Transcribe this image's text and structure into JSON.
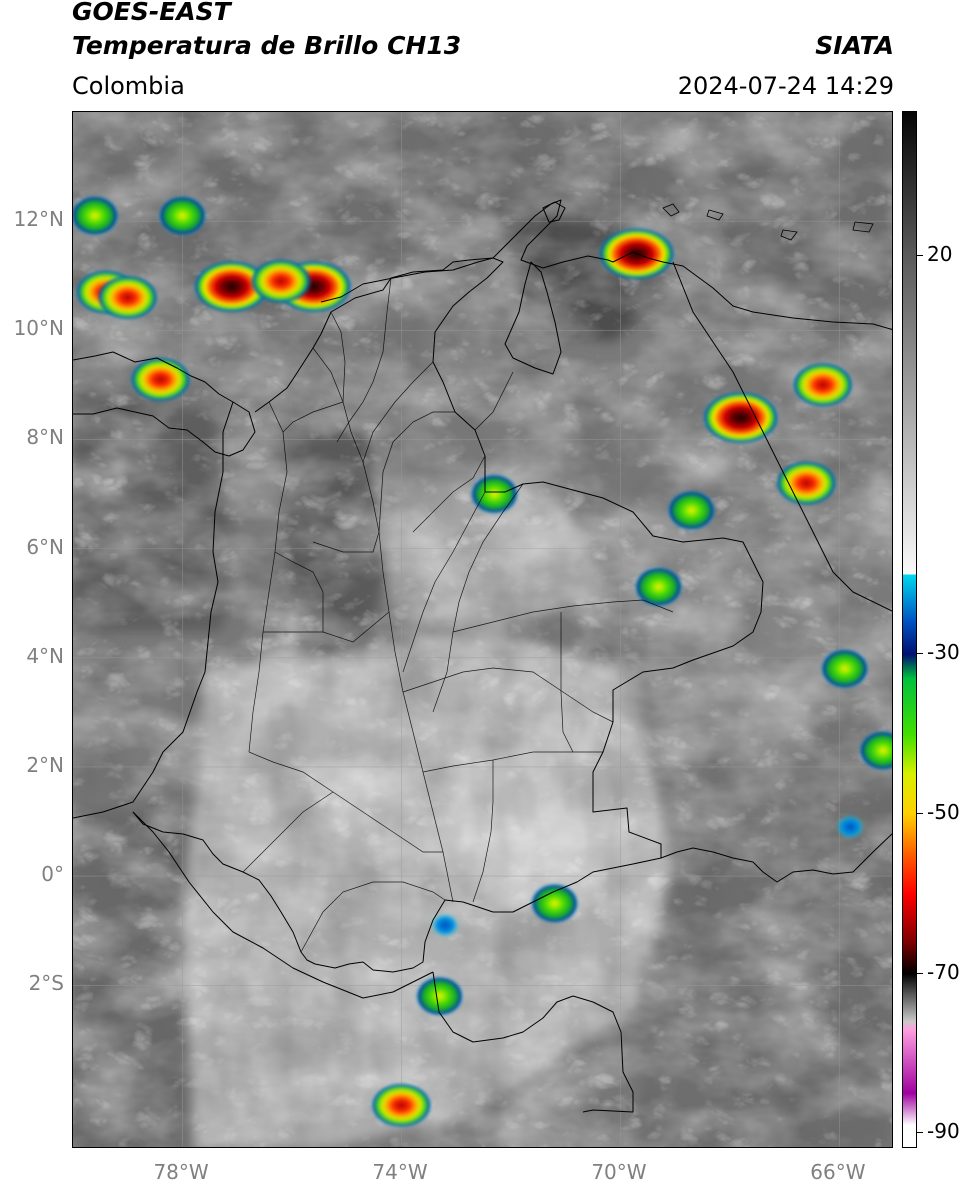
{
  "header": {
    "satellite": "GOES-EAST",
    "product": "Temperatura de Brillo CH13",
    "region": "Colombia",
    "source": "SIATA",
    "datetime": "2024-07-24 14:29"
  },
  "map": {
    "lon_range": [
      -80,
      -65
    ],
    "lat_range": [
      -5,
      14
    ],
    "lat_ticks": [
      {
        "value": 12,
        "label": "12°N"
      },
      {
        "value": 10,
        "label": "10°N"
      },
      {
        "value": 8,
        "label": "8°N"
      },
      {
        "value": 6,
        "label": "6°N"
      },
      {
        "value": 4,
        "label": "4°N"
      },
      {
        "value": 2,
        "label": "2°N"
      },
      {
        "value": 0,
        "label": "0°"
      },
      {
        "value": -2,
        "label": "2°S"
      }
    ],
    "lon_ticks": [
      {
        "value": -78,
        "label": "78°W"
      },
      {
        "value": -74,
        "label": "74°W"
      },
      {
        "value": -70,
        "label": "70°W"
      },
      {
        "value": -66,
        "label": "66°W"
      }
    ],
    "grid": true,
    "convective_cells": [
      {
        "lon": -75.6,
        "lat": 10.8,
        "intensity": "extreme"
      },
      {
        "lon": -77.1,
        "lat": 10.8,
        "intensity": "extreme"
      },
      {
        "lon": -76.2,
        "lat": 10.9,
        "intensity": "strong"
      },
      {
        "lon": -79.4,
        "lat": 10.7,
        "intensity": "strong"
      },
      {
        "lon": -79.0,
        "lat": 10.6,
        "intensity": "strong"
      },
      {
        "lon": -78.4,
        "lat": 9.1,
        "intensity": "strong"
      },
      {
        "lon": -69.7,
        "lat": 11.4,
        "intensity": "extreme"
      },
      {
        "lon": -67.8,
        "lat": 8.4,
        "intensity": "extreme"
      },
      {
        "lon": -66.3,
        "lat": 9.0,
        "intensity": "strong"
      },
      {
        "lon": -66.6,
        "lat": 7.2,
        "intensity": "strong"
      },
      {
        "lon": -74.0,
        "lat": -4.2,
        "intensity": "strong"
      },
      {
        "lon": -71.2,
        "lat": -0.5,
        "intensity": "moderate"
      },
      {
        "lon": -73.3,
        "lat": -2.2,
        "intensity": "moderate"
      },
      {
        "lon": -65.9,
        "lat": 3.8,
        "intensity": "moderate"
      },
      {
        "lon": -69.3,
        "lat": 5.3,
        "intensity": "moderate"
      },
      {
        "lon": -78.0,
        "lat": 12.1,
        "intensity": "moderate"
      },
      {
        "lon": -79.6,
        "lat": 12.1,
        "intensity": "moderate"
      },
      {
        "lon": -72.3,
        "lat": 7.0,
        "intensity": "moderate"
      },
      {
        "lon": -68.7,
        "lat": 6.7,
        "intensity": "moderate"
      },
      {
        "lon": -73.2,
        "lat": -0.9,
        "intensity": "weak"
      },
      {
        "lon": -65.2,
        "lat": 2.3,
        "intensity": "moderate"
      },
      {
        "lon": -65.8,
        "lat": 0.9,
        "intensity": "weak"
      }
    ]
  },
  "colorbar": {
    "vmin": -92,
    "vmax": 38,
    "ticks": [
      {
        "value": 20,
        "label": "20"
      },
      {
        "value": -30,
        "label": "-30"
      },
      {
        "value": -50,
        "label": "-50"
      },
      {
        "value": -70,
        "label": "-70"
      },
      {
        "value": -90,
        "label": "-90"
      }
    ],
    "stops": [
      {
        "value": 38,
        "color": "#050505"
      },
      {
        "value": 20,
        "color": "#5a5a5a"
      },
      {
        "value": -20,
        "color": "#fafafa"
      },
      {
        "value": -20.01,
        "color": "#00d8f0"
      },
      {
        "value": -26,
        "color": "#0050c0"
      },
      {
        "value": -30,
        "color": "#001070"
      },
      {
        "value": -33,
        "color": "#00c040"
      },
      {
        "value": -40,
        "color": "#40e000"
      },
      {
        "value": -45,
        "color": "#d8f000"
      },
      {
        "value": -50,
        "color": "#ffd000"
      },
      {
        "value": -55,
        "color": "#ff6000"
      },
      {
        "value": -60,
        "color": "#ff0000"
      },
      {
        "value": -66,
        "color": "#800000"
      },
      {
        "value": -70,
        "color": "#000000"
      },
      {
        "value": -76,
        "color": "#c8c8c8"
      },
      {
        "value": -77,
        "color": "#ffa0e0"
      },
      {
        "value": -85,
        "color": "#a000a0"
      },
      {
        "value": -89,
        "color": "#ffffff"
      }
    ]
  }
}
